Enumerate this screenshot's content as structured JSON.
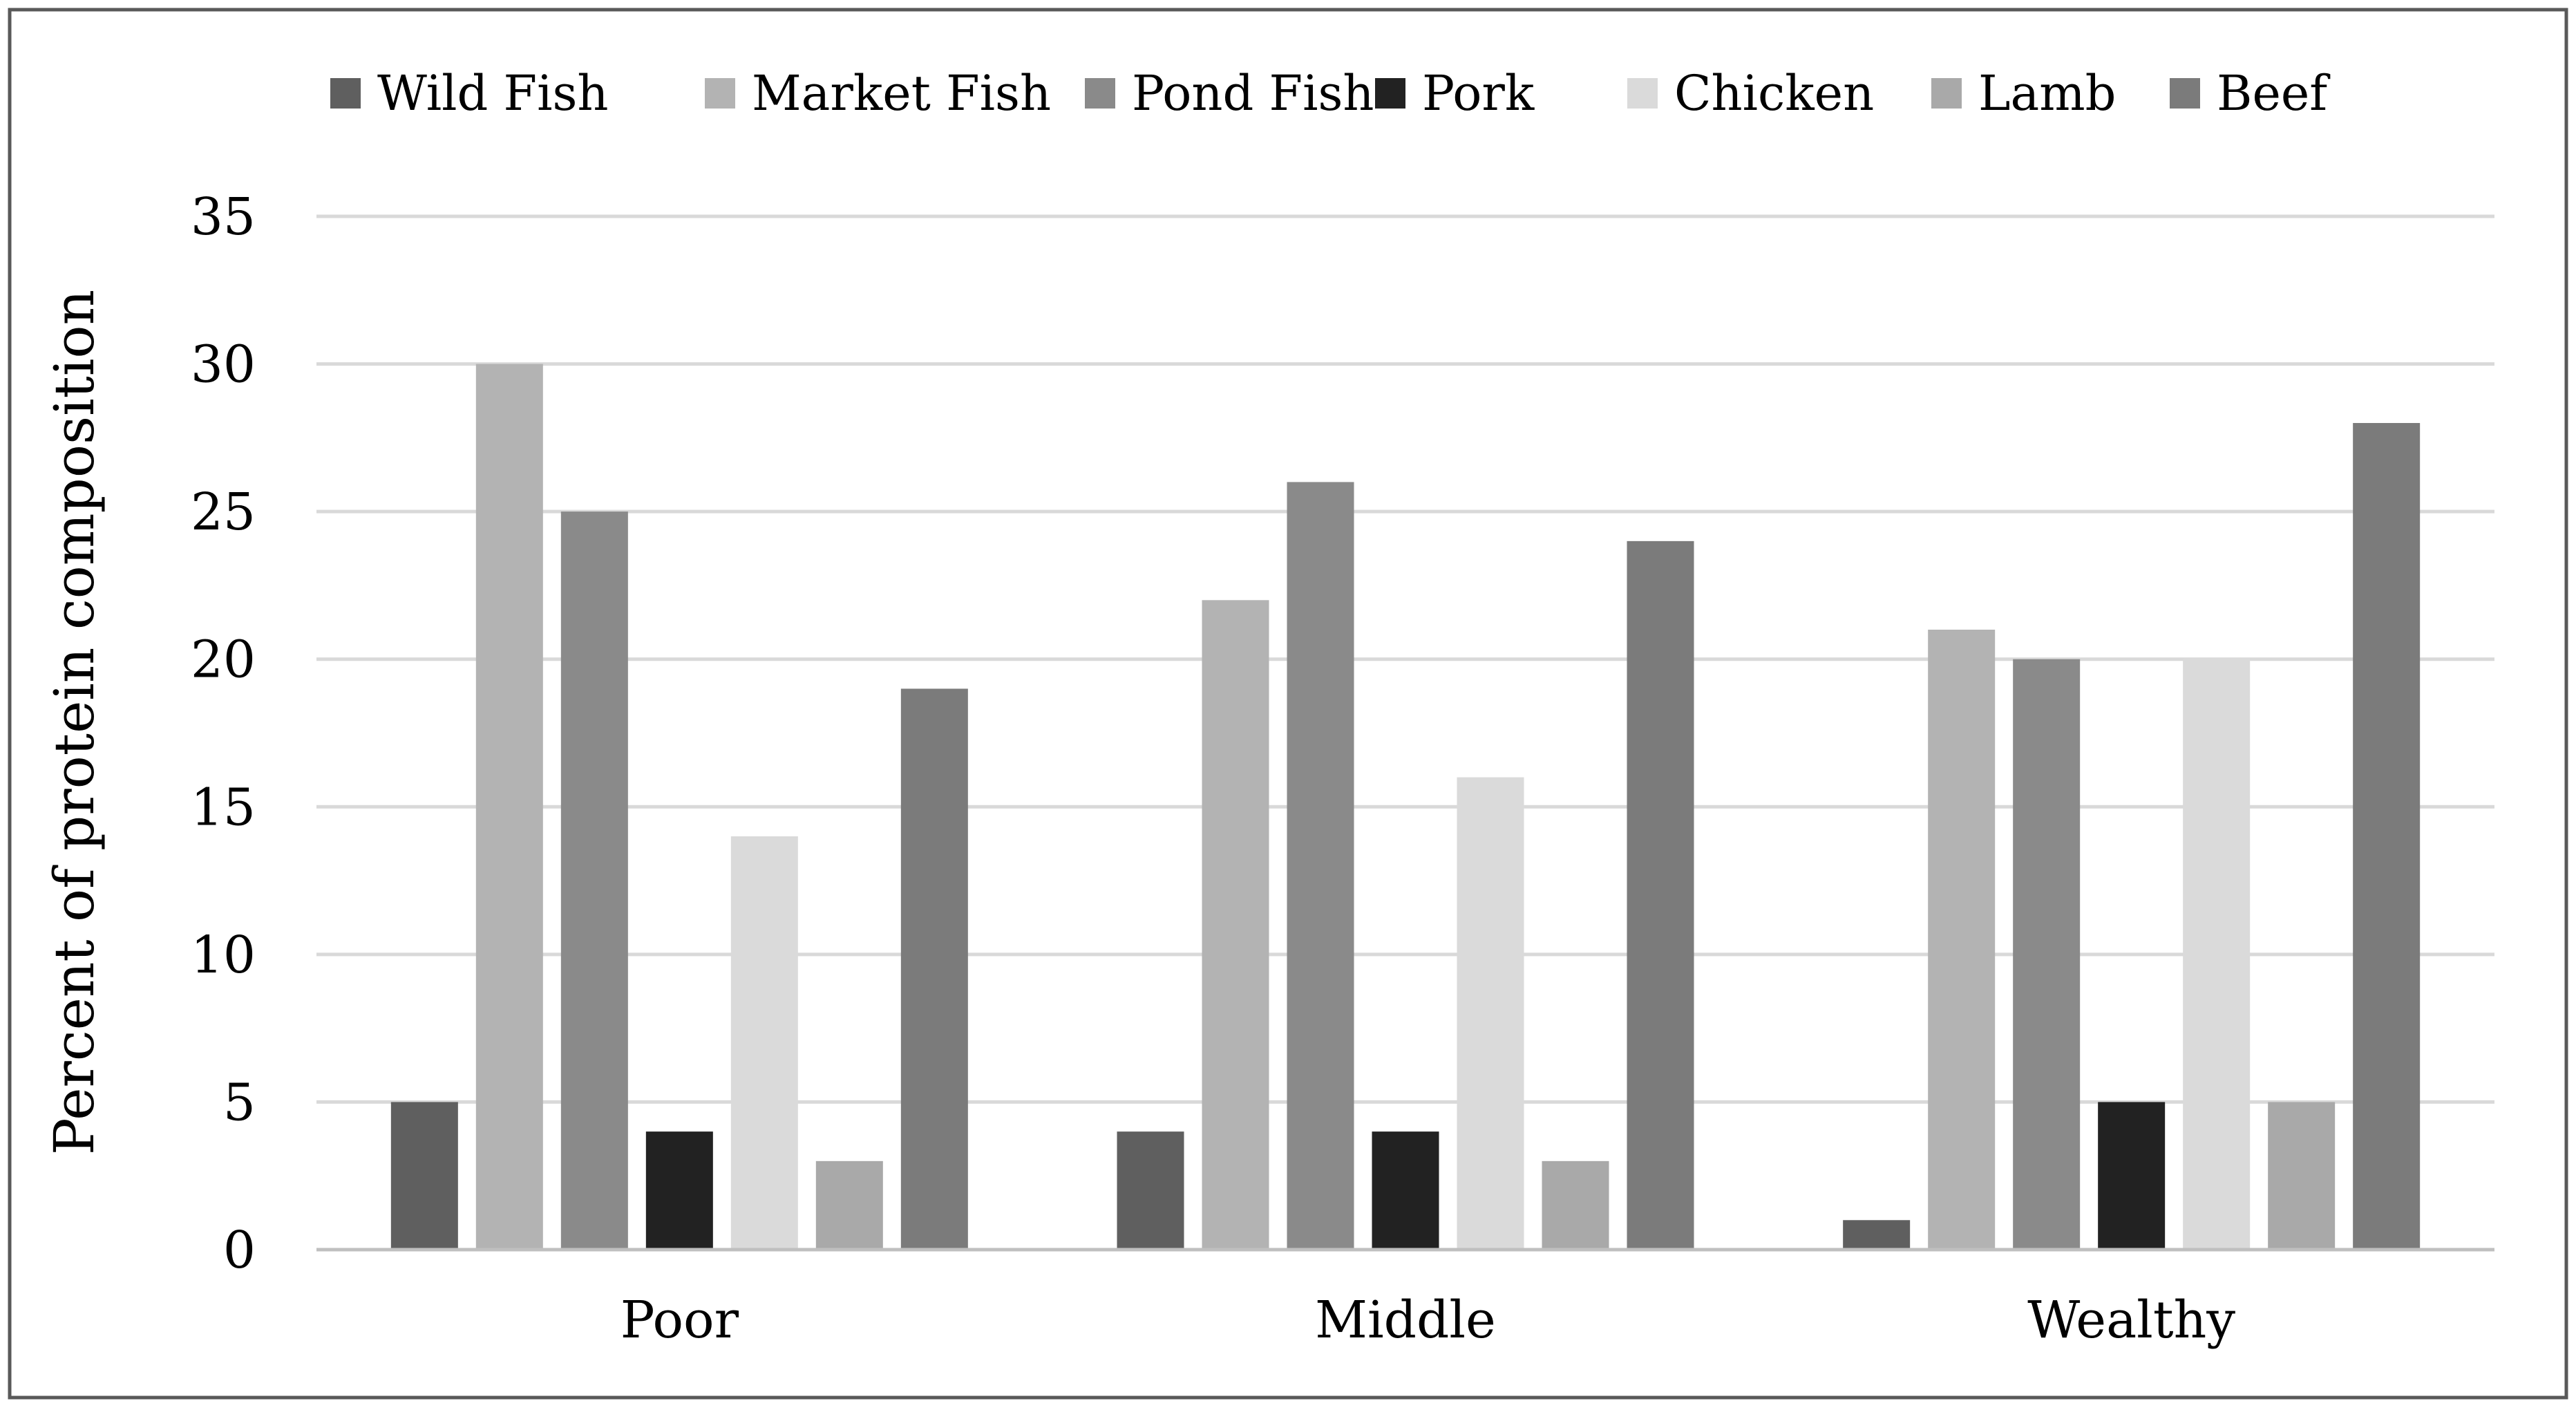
{
  "chart_data": {
    "type": "bar",
    "title": "",
    "xlabel": "",
    "ylabel": "Percent of protein composition",
    "categories": [
      "Poor",
      "Middle",
      "Wealthy"
    ],
    "series": [
      {
        "name": "Wild Fish",
        "color": "#5f5f5f",
        "values": [
          5,
          4,
          1
        ]
      },
      {
        "name": "Market Fish",
        "color": "#b3b3b3",
        "values": [
          30,
          22,
          21
        ]
      },
      {
        "name": "Pond Fish",
        "color": "#8a8a8a",
        "values": [
          25,
          26,
          20
        ]
      },
      {
        "name": "Pork",
        "color": "#222222",
        "values": [
          4,
          4,
          5
        ]
      },
      {
        "name": "Chicken",
        "color": "#dadada",
        "values": [
          14,
          16,
          20
        ]
      },
      {
        "name": "Lamb",
        "color": "#a9a9a9",
        "values": [
          3,
          3,
          5
        ]
      },
      {
        "name": "Beef",
        "color": "#7b7b7b",
        "values": [
          19,
          24,
          28
        ]
      }
    ],
    "ylim": [
      0,
      35
    ],
    "yticks": [
      0,
      5,
      10,
      15,
      20,
      25,
      30,
      35
    ],
    "grid": true,
    "legend_position": "top-center",
    "colors": {
      "gridline": "#d9d9d9",
      "axis": "#bfbfbf",
      "border": "#595959"
    }
  }
}
